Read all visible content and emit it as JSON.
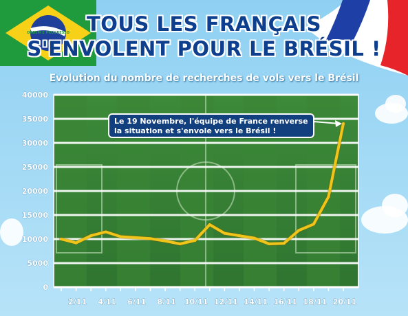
{
  "header": {
    "title_line1": "TOUS LES FRANÇAIS",
    "title_line2": "S'ENVOLENT POUR LE BRÉSIL !",
    "brazil_flag_motto": "ORDEM E PROGRESSO"
  },
  "chart_data": {
    "type": "line",
    "title": "Evolution du nombre de recherches de vols vers le Brésil",
    "xlabel": "",
    "ylabel": "",
    "ylim": [
      0,
      40000
    ],
    "yticks": [
      0,
      5000,
      10000,
      15000,
      20000,
      25000,
      30000,
      35000,
      40000
    ],
    "x_categories": [
      "1/11",
      "2/11",
      "3/11",
      "4/11",
      "5/11",
      "6/11",
      "7/11",
      "8/11",
      "9/11",
      "10/11",
      "11/11",
      "12/11",
      "13/11",
      "14/11",
      "15/11",
      "16/11",
      "17/11",
      "18/11",
      "19/11",
      "20/11"
    ],
    "x_tick_labels": [
      "",
      "2/11",
      "",
      "4/11",
      "",
      "6/11",
      "",
      "8/11",
      "",
      "10/11",
      "",
      "12/11",
      "",
      "14/11",
      "",
      "16/11",
      "",
      "18/11",
      "",
      "20/11"
    ],
    "series": [
      {
        "color": "#f0c419",
        "values": [
          10000,
          9200,
          10700,
          11500,
          10500,
          10300,
          10100,
          9600,
          9000,
          9700,
          13000,
          11200,
          10700,
          10200,
          9000,
          9100,
          11800,
          13100,
          18800,
          34000
        ]
      }
    ],
    "grid": true,
    "annotation": {
      "text_line1": "Le 19 Novembre, l'équipe de France renverse",
      "text_line2": "la situation et s'envole vers le Brésil !",
      "points_to": "20/11"
    }
  }
}
